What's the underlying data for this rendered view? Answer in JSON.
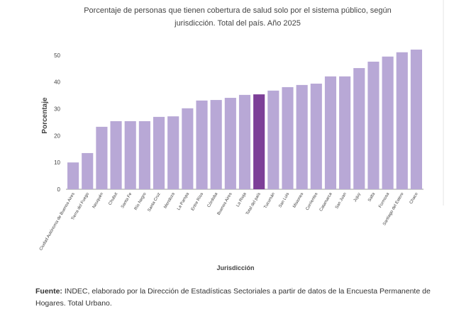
{
  "chart_data": {
    "type": "bar",
    "title": [
      "Porcentaje de personas que tienen cobertura de salud solo por el sistema público, según",
      "jurisdicción. Total del país. Año 2025"
    ],
    "x_label": "Jurisdicción",
    "y_label": "Porcentaje",
    "categories": [
      "Ciudad Autónoma de Buenos Aires",
      "Tierra del Fuego",
      "Neuquén",
      "Chubut",
      "Santa Fe",
      "Río Negro",
      "Santa Cruz",
      "Mendoza",
      "La Pampa",
      "Entre Ríos",
      "Córdoba",
      "Buenos Aires",
      "La Rioja",
      "Total del país",
      "Tucumán",
      "San Luis",
      "Misiones",
      "Corrientes",
      "Catamarca",
      "San Juan",
      "Jujuy",
      "Salta",
      "Formosa",
      "Santiago del Estero",
      "Chaco"
    ],
    "values": [
      10,
      13.5,
      23.3,
      25.4,
      25.4,
      25.4,
      27,
      27.2,
      30.2,
      33.1,
      33.3,
      34.1,
      35.2,
      35.4,
      36.8,
      38.1,
      38.9,
      39.4,
      42.1,
      42.1,
      45.2,
      47.6,
      49.5,
      51.1,
      52.1
    ],
    "colors": [
      "#b8a8d6",
      "#b8a8d6",
      "#b8a8d6",
      "#b8a8d6",
      "#b8a8d6",
      "#b8a8d6",
      "#b8a8d6",
      "#b8a8d6",
      "#b8a8d6",
      "#b8a8d6",
      "#b8a8d6",
      "#b8a8d6",
      "#b8a8d6",
      "#7d3f98",
      "#b8a8d6",
      "#b8a8d6",
      "#b8a8d6",
      "#b8a8d6",
      "#b8a8d6",
      "#b8a8d6",
      "#b8a8d6",
      "#b8a8d6",
      "#b8a8d6",
      "#b8a8d6",
      "#b8a8d6"
    ],
    "ylim": [
      0,
      55
    ],
    "yticks": [
      0,
      10,
      20,
      30,
      40,
      50
    ],
    "grid": false
  },
  "footer": {
    "label": "Fuente:",
    "text": "INDEC, elaborado por la Dirección de Estadísticas Sectoriales a partir de datos de la Encuesta Permanente de Hogares. Total Urbano."
  }
}
